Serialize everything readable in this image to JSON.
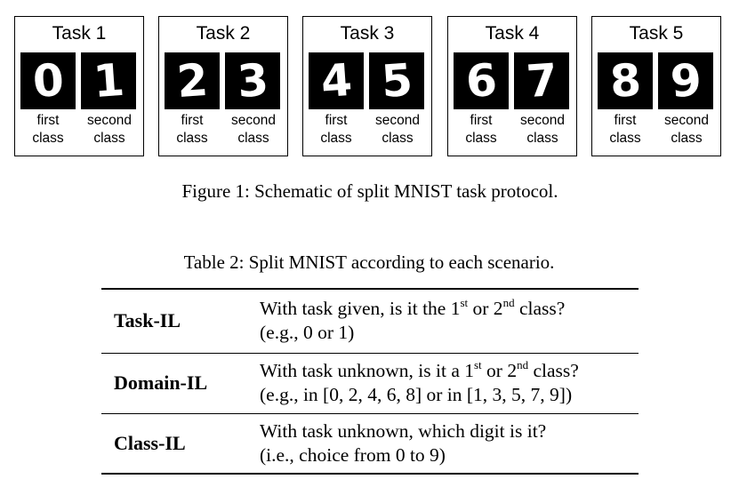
{
  "figure": {
    "tasks": [
      {
        "title": "Task 1",
        "digits": [
          "0",
          "1"
        ]
      },
      {
        "title": "Task 2",
        "digits": [
          "2",
          "3"
        ]
      },
      {
        "title": "Task 3",
        "digits": [
          "4",
          "5"
        ]
      },
      {
        "title": "Task 4",
        "digits": [
          "6",
          "7"
        ]
      },
      {
        "title": "Task 5",
        "digits": [
          "8",
          "9"
        ]
      }
    ],
    "first_label": [
      "first",
      "class"
    ],
    "second_label": [
      "second",
      "class"
    ],
    "caption": "Figure 1: Schematic of split MNIST task protocol."
  },
  "table": {
    "caption": "Table 2: Split MNIST according to each scenario.",
    "rows": [
      {
        "name": "Task-IL",
        "line1": {
          "pre": "With task given, is it the 1",
          "sup1": "st",
          "mid": " or 2",
          "sup2": "nd",
          "post": " class?"
        },
        "line2": "(e.g., 0 or 1)"
      },
      {
        "name": "Domain-IL",
        "line1": {
          "pre": "With task unknown, is it a 1",
          "sup1": "st",
          "mid": " or 2",
          "sup2": "nd",
          "post": " class?"
        },
        "line2": "(e.g., in [0, 2, 4, 6, 8] or in [1, 3, 5, 7, 9])"
      },
      {
        "name": "Class-IL",
        "line1": {
          "pre": "With task unknown, which digit is it?",
          "sup1": "",
          "mid": "",
          "sup2": "",
          "post": ""
        },
        "line2": "(i.e., choice from 0 to 9)"
      }
    ]
  }
}
